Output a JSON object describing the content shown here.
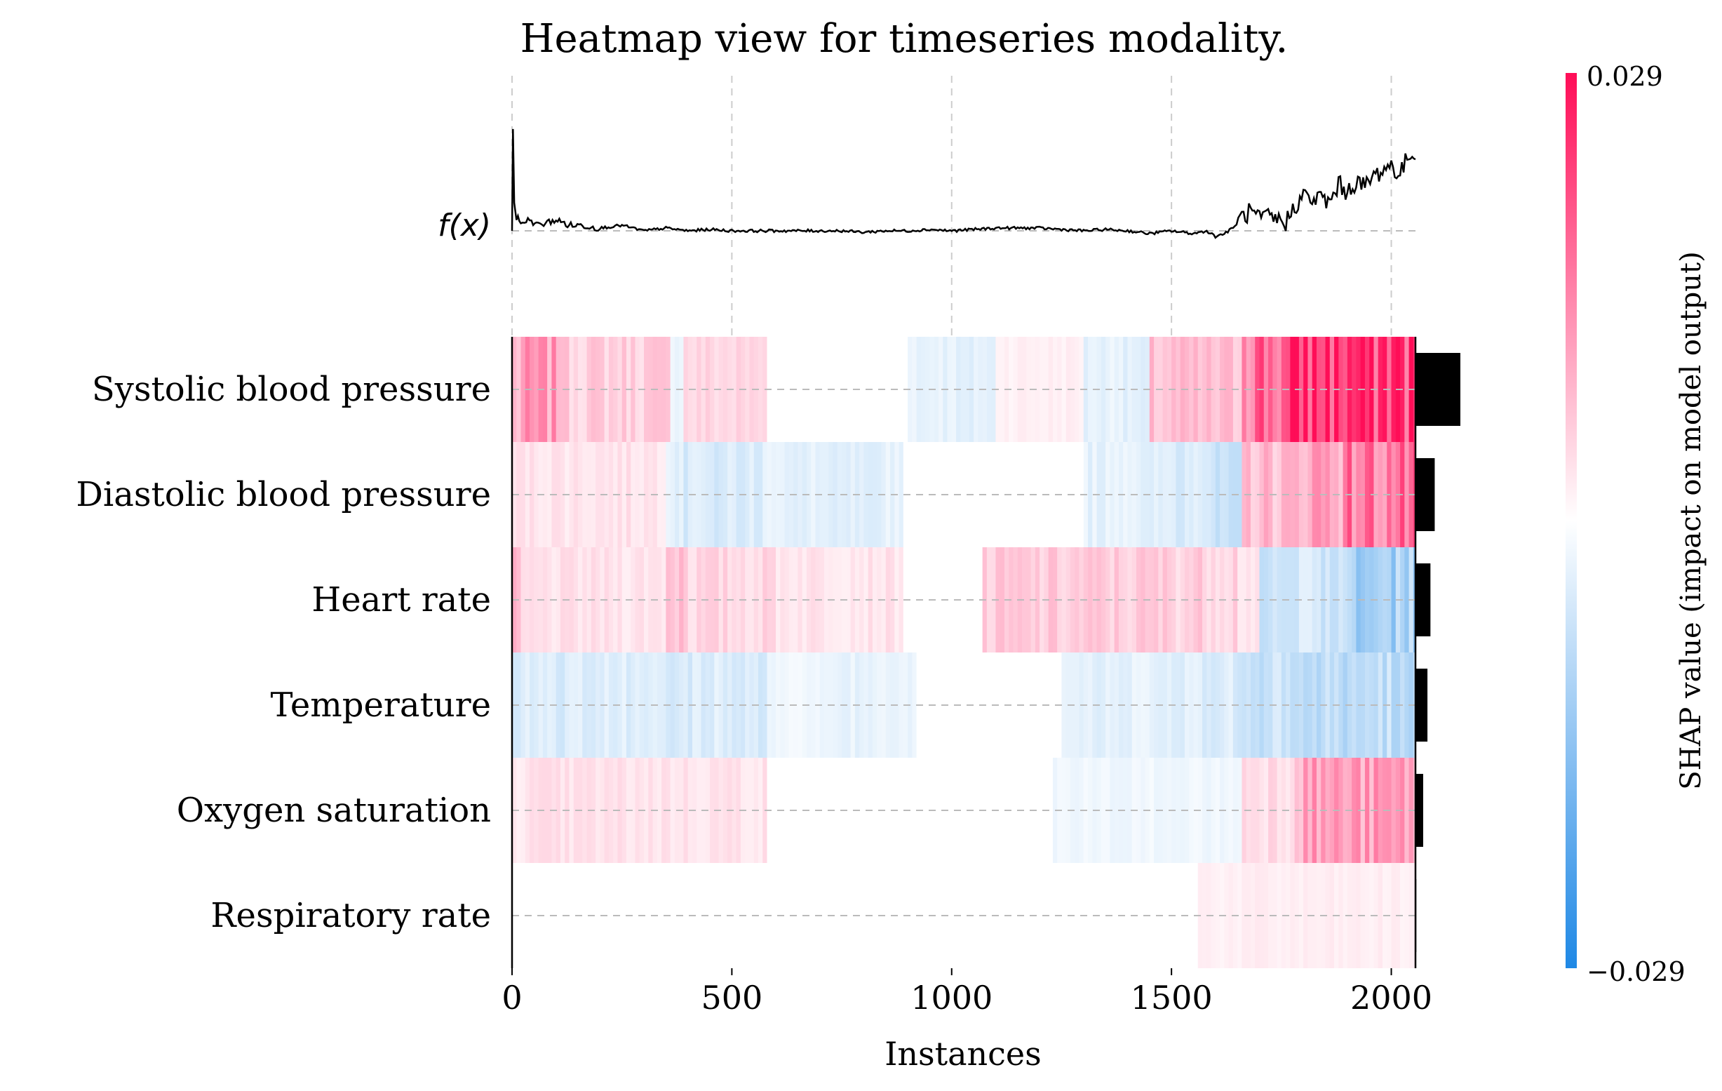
{
  "chart_data": {
    "type": "heatmap",
    "title": "Heatmap view for timeseries modality.",
    "xlabel": "Instances",
    "fx_label": "f(x)",
    "xlim": [
      0,
      2055
    ],
    "xticks": [
      0,
      500,
      1000,
      1500,
      2000
    ],
    "features": [
      "Systolic blood pressure",
      "Diastolic blood pressure",
      "Heart rate",
      "Temperature",
      "Oxygen saturation",
      "Respiratory rate"
    ],
    "feature_importance": [
      0.0105,
      0.0045,
      0.0035,
      0.0028,
      0.0018,
      0.0002
    ],
    "colorbar": {
      "label": "SHAP value (impact on model output)",
      "max_label": "0.029",
      "min_label": "−0.029",
      "vmin": -0.029,
      "vmax": 0.029,
      "pos_color": "#ff0d57",
      "neg_color": "#1e88e5"
    },
    "shap_segments": [
      [
        [
          0,
          20,
          0.006
        ],
        [
          20,
          120,
          0.009
        ],
        [
          120,
          360,
          0.004
        ],
        [
          360,
          390,
          -0.002
        ],
        [
          390,
          580,
          0.003
        ],
        [
          580,
          900,
          0.0
        ],
        [
          900,
          1100,
          -0.002
        ],
        [
          1100,
          1300,
          0.001
        ],
        [
          1300,
          1450,
          -0.002
        ],
        [
          1450,
          1660,
          0.005
        ],
        [
          1660,
          1770,
          0.017
        ],
        [
          1770,
          2055,
          0.024
        ]
      ],
      [
        [
          0,
          350,
          0.002
        ],
        [
          350,
          580,
          -0.003
        ],
        [
          580,
          890,
          -0.002
        ],
        [
          890,
          1300,
          0.0
        ],
        [
          1300,
          1500,
          -0.002
        ],
        [
          1500,
          1660,
          -0.004
        ],
        [
          1660,
          1800,
          0.006
        ],
        [
          1800,
          1900,
          0.01
        ],
        [
          1900,
          2055,
          0.014
        ]
      ],
      [
        [
          0,
          20,
          0.005
        ],
        [
          20,
          350,
          0.002
        ],
        [
          350,
          400,
          0.006
        ],
        [
          400,
          600,
          0.003
        ],
        [
          600,
          890,
          0.002
        ],
        [
          890,
          1070,
          0.0
        ],
        [
          1070,
          1650,
          0.004
        ],
        [
          1650,
          1700,
          0.002
        ],
        [
          1700,
          1900,
          -0.004
        ],
        [
          1900,
          2055,
          -0.009
        ]
      ],
      [
        [
          0,
          580,
          -0.003
        ],
        [
          580,
          730,
          -0.001
        ],
        [
          730,
          920,
          -0.002
        ],
        [
          920,
          1250,
          0.0
        ],
        [
          1250,
          1500,
          -0.002
        ],
        [
          1500,
          1650,
          -0.003
        ],
        [
          1650,
          2055,
          -0.006
        ]
      ],
      [
        [
          0,
          580,
          0.002
        ],
        [
          580,
          1230,
          0.0
        ],
        [
          1230,
          1660,
          -0.001
        ],
        [
          1660,
          1780,
          0.003
        ],
        [
          1780,
          2055,
          0.009
        ]
      ],
      [
        [
          0,
          1560,
          0.0
        ],
        [
          1560,
          2055,
          0.001
        ]
      ]
    ],
    "fx_series": {
      "x": [
        0,
        2,
        5,
        10,
        20,
        40,
        60,
        80,
        100,
        130,
        160,
        200,
        250,
        300,
        350,
        400,
        450,
        500,
        550,
        600,
        650,
        700,
        750,
        800,
        850,
        900,
        950,
        1000,
        1050,
        1100,
        1150,
        1200,
        1250,
        1300,
        1350,
        1400,
        1450,
        1500,
        1550,
        1580,
        1600,
        1620,
        1640,
        1660,
        1680,
        1700,
        1720,
        1740,
        1760,
        1780,
        1800,
        1820,
        1840,
        1860,
        1880,
        1900,
        1920,
        1940,
        1960,
        1980,
        2000,
        2020,
        2040,
        2055
      ],
      "y": [
        0.0,
        0.037,
        0.009,
        0.005,
        0.003,
        0.004,
        0.002,
        0.003,
        0.004,
        0.002,
        0.002,
        0.001,
        0.002,
        0.0,
        0.001,
        0.0,
        0.0005,
        0.0,
        0.0,
        0.0,
        0.0,
        0.0,
        0.0,
        -0.0005,
        0.0,
        0.0,
        0.0005,
        0.0,
        0.0005,
        0.001,
        0.001,
        0.001,
        0.0005,
        0.0,
        0.0005,
        0.0,
        -0.001,
        0.0,
        -0.001,
        0.0,
        -0.002,
        -0.001,
        0.001,
        0.005,
        0.007,
        0.004,
        0.005,
        0.004,
        0.003,
        0.009,
        0.013,
        0.011,
        0.012,
        0.01,
        0.017,
        0.014,
        0.018,
        0.016,
        0.02,
        0.022,
        0.024,
        0.02,
        0.028,
        0.026
      ],
      "baseline": 0.0,
      "ylim": [
        -0.004,
        0.038
      ]
    }
  }
}
